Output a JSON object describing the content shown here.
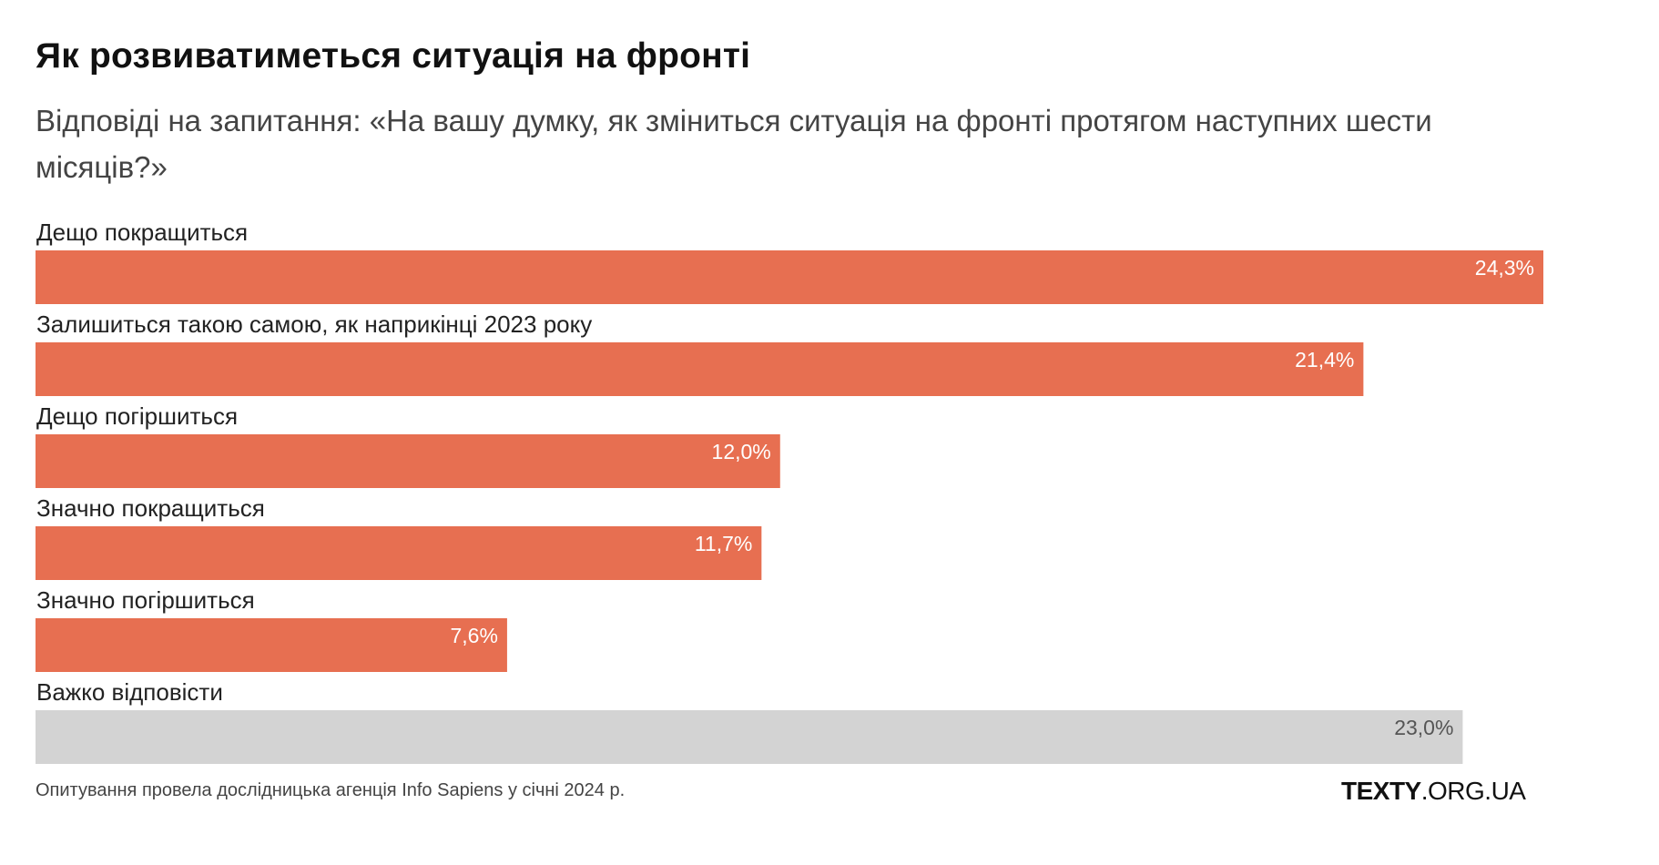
{
  "header": {
    "title": "Як розвиватиметься ситуація на фронті",
    "subtitle": "Відповіді на запитання: «На вашу думку, як зміниться ситуація на фронті протягом наступних шести місяців?»"
  },
  "chart_data": {
    "type": "bar",
    "orientation": "horizontal",
    "categories": [
      "Дещо покращиться",
      "Залишиться такою самою, як наприкінці 2023 року",
      "Дещо погіршиться",
      "Значно покращиться",
      "Значно погіршиться",
      "Важко відповісти"
    ],
    "values": [
      24.3,
      21.4,
      12.0,
      11.7,
      7.6,
      23.0
    ],
    "value_labels": [
      "24,3%",
      "21,4%",
      "12,0%",
      "11,7%",
      "7,6%",
      "23,0%"
    ],
    "bar_colors": [
      "#e76f51",
      "#e76f51",
      "#e76f51",
      "#e76f51",
      "#e76f51",
      "#d3d3d3"
    ],
    "value_label_colors": [
      "#ffffff",
      "#ffffff",
      "#ffffff",
      "#ffffff",
      "#ffffff",
      "#555555"
    ],
    "grid": false,
    "legend": "none"
  },
  "footer": {
    "note": "Опитування провела дослідницька агенція Info Sapiens у січні 2024 р.",
    "logo_bold": "TEXTY",
    "logo_rest": ".ORG.UA"
  }
}
